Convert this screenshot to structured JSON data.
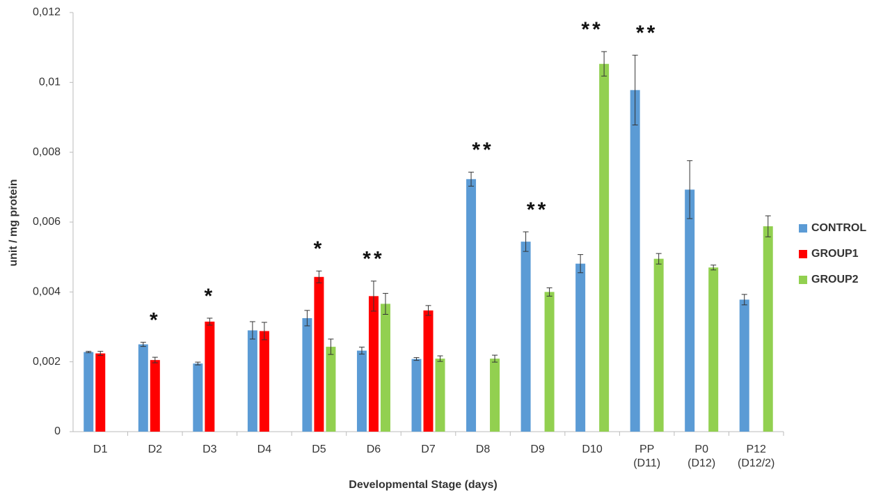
{
  "chart_data": {
    "type": "bar",
    "x_label": "Developmental Stage (days)",
    "y_label": "unit / mg protein",
    "categories": [
      "D1",
      "D2",
      "D3",
      "D4",
      "D5",
      "D6",
      "D7",
      "D8",
      "D9",
      "D10",
      "PP\n(D11)",
      "P0\n(D12)",
      "P12\n(D12/2)"
    ],
    "series": [
      {
        "name": "CONTROL",
        "color": "#5b9bd5",
        "values": [
          0.00228,
          0.0025,
          0.00195,
          0.0029,
          0.00325,
          0.00232,
          0.00208,
          0.00723,
          0.00544,
          0.00481,
          0.00978,
          0.00693,
          0.00378
        ],
        "errors": [
          2e-05,
          6e-05,
          4e-05,
          0.00025,
          0.00022,
          0.0001,
          4e-05,
          0.0002,
          0.00028,
          0.00026,
          0.001,
          0.00083,
          0.00015
        ]
      },
      {
        "name": "GROUP1",
        "color": "#ff0000",
        "values": [
          0.00224,
          0.00205,
          0.00315,
          0.00288,
          0.00443,
          0.00388,
          0.00347,
          null,
          null,
          null,
          null,
          null,
          null
        ],
        "errors": [
          6e-05,
          8e-05,
          0.0001,
          0.00025,
          0.00017,
          0.00043,
          0.00014,
          null,
          null,
          null,
          null,
          null,
          null
        ]
      },
      {
        "name": "GROUP2",
        "color": "#92d050",
        "values": [
          null,
          null,
          null,
          null,
          0.00243,
          0.00366,
          0.00209,
          0.00209,
          0.004,
          0.01053,
          0.00495,
          0.0047,
          0.00588
        ],
        "errors": [
          null,
          null,
          null,
          null,
          0.00022,
          0.0003,
          8e-05,
          0.0001,
          0.00012,
          0.00035,
          0.00015,
          7e-05,
          0.0003
        ]
      }
    ],
    "annotations": [
      {
        "category": "D2",
        "text": "*"
      },
      {
        "category": "D3",
        "text": "*"
      },
      {
        "category": "D5",
        "text": "*"
      },
      {
        "category": "D6",
        "text": "**"
      },
      {
        "category": "D8",
        "text": "**"
      },
      {
        "category": "D9",
        "text": "**"
      },
      {
        "category": "D10",
        "text": "**"
      },
      {
        "category": "PP\n(D11)",
        "text": "**"
      }
    ],
    "ylim": [
      0,
      0.012
    ],
    "yticks": [
      0,
      {
        "value": 0.002,
        "label": "0,002"
      },
      {
        "value": 0.004,
        "label": "0,004"
      },
      {
        "value": 0.006,
        "label": "0,006"
      },
      {
        "value": 0.008,
        "label": "0,008"
      },
      {
        "value": 0.01,
        "label": "0,01"
      },
      {
        "value": 0.012,
        "label": "0,012"
      }
    ],
    "grid": false,
    "legend": "right"
  }
}
